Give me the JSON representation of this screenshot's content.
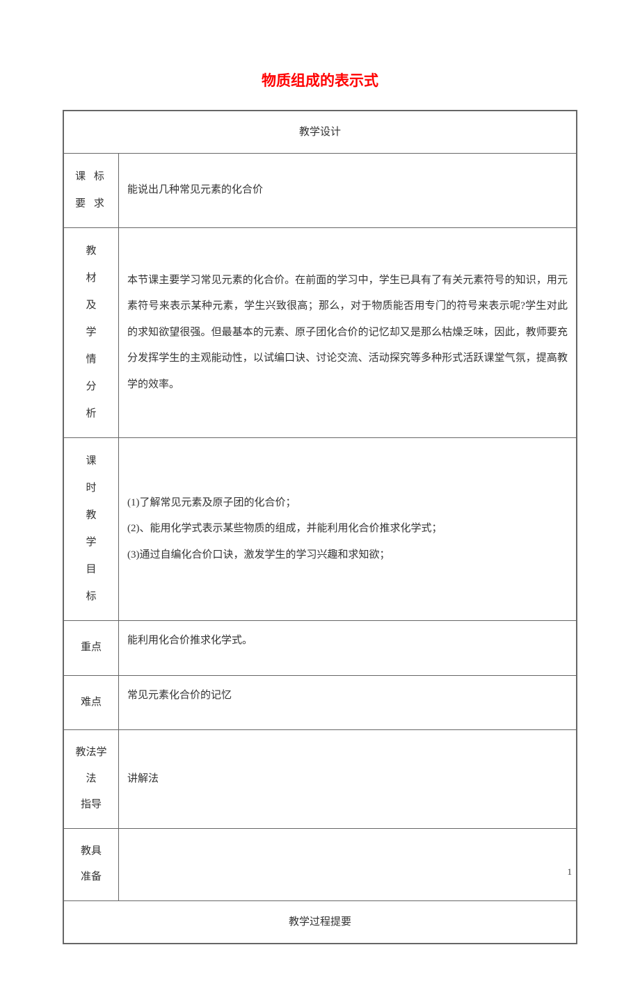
{
  "title": "物质组成的表示式",
  "headers": {
    "design": "教学设计",
    "process": "教学过程提要"
  },
  "rows": {
    "standard": {
      "label": "课 标要 求",
      "content": "能说出几种常见元素的化合价"
    },
    "analysis": {
      "label": "教材及学情分析",
      "content": "本节课主要学习常见元素的化合价。在前面的学习中，学生已具有了有关元素符号的知识，用元素符号来表示某种元素，学生兴致很高；那么，对于物质能否用专门的符号来表示呢?学生对此的求知欲望很强。但最基本的元素、原子团化合价的记忆却又是那么枯燥乏味，因此，教师要充分发挥学生的主观能动性，以试编口诀、讨论交流、活动探究等多种形式活跃课堂气氛，提高教学的效率。"
    },
    "objectives": {
      "label": "课时教学目标",
      "line1": "(1)了解常见元素及原子团的化合价；",
      "line2": "(2)、能用化学式表示某些物质的组成，并能利用化合价推求化学式；",
      "line3": "(3)通过自编化合价口诀，激发学生的学习兴趣和求知欲；"
    },
    "keypoint": {
      "label": "重点",
      "content": "能利用化合价推求化学式。"
    },
    "difficulty": {
      "label": "难点",
      "content": "常见元素化合价的记忆"
    },
    "method": {
      "label": "教法学法指导",
      "content": "讲解法"
    },
    "prep": {
      "label": "教具准备",
      "content": ""
    }
  },
  "page_number": "1",
  "colors": {
    "title_color": "#ff0000",
    "text_color": "#333333",
    "border_color": "#666666",
    "background": "#ffffff"
  }
}
